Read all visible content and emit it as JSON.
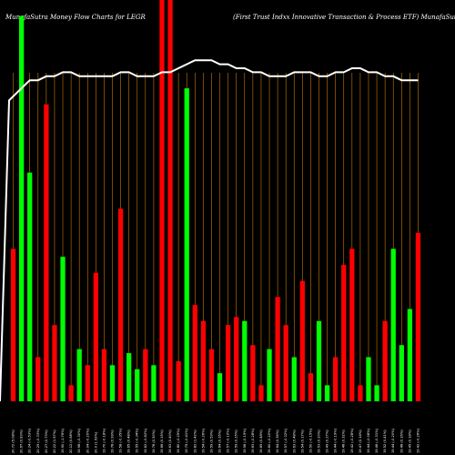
{
  "chart_data": {
    "type": "bar",
    "title": "MunafaSutra  Money Flow  Charts for LEGR",
    "subtitle": "(First Trust Indxx Innovative   Transaction  & Process ETF) MunafaSutra.com",
    "ylim": [
      0,
      100
    ],
    "grid": true,
    "colors": {
      "up": "#00ff00",
      "down": "#ff0000",
      "price_line": "#ffffff",
      "grid": "#cc7a00",
      "background": "#000000"
    },
    "categories": [
      "20.72 (5.08%)",
      "20.67 (0.83%)",
      "20.24 (-0.53%)",
      "20.29 (-0.33%)",
      "20.27 (0.73%)",
      "20.22 (1.57%)",
      "19.90 (-1.76%)",
      "20.12 (0.68%)",
      "19.98 (-0.30%)",
      "20.04 (-0.20%)",
      "20.0 (1.52%)",
      "19.70 (-0.18%)",
      "19.78 (0.99%)",
      "19.58 (-0.35%)",
      "19.65 (0.48%)",
      "19.55 (-0.34%)",
      "19.62 (-0.82%)",
      "19.78 (0.50%)",
      "19.66 (0.15%)",
      "19.63 (0.40%)",
      "19.80 (-0.25%)",
      "19.75 (-0.41%)",
      "19.82 (1.42%)",
      "19.54 (-0.26%)",
      "19.59 (0.59%)",
      "19.64 (0.35%)",
      "19.57 (-0.10%)",
      "19.59 (0.15%)",
      "19.56 (-0.19%)",
      "19.63 (-0.28%)",
      "19.69 (0.48%)",
      "19.60 (-0.20%)",
      "19.64 (0.36%)",
      "19.57 (-0.32%)",
      "19.63 (0.48%)",
      "19.54 (0.17%)",
      "19.50 (-0.15%)",
      "19.53 (0.20%)",
      "19.49 (0.27%)",
      "19.44 (-0.19%)",
      "19.48 (0.32%)",
      "19.42 (-0.28%)",
      "19.47 (0.14%)",
      "19.44 (-0.08%)",
      "19.46 (-0.31%)",
      "19.52 (0.41%)",
      "19.44 (-0.20%)",
      "19.48 (0.16%)",
      "19.45 (0.18%)",
      "19.42 (-0.26%)"
    ],
    "series": [
      {
        "values": [
          38,
          96,
          57,
          11,
          74,
          19,
          36,
          4,
          13,
          9,
          32,
          13,
          9,
          48,
          12,
          8,
          13,
          9,
          100,
          100,
          10,
          78,
          24,
          20,
          13,
          7,
          19,
          21,
          20,
          14,
          4,
          13,
          26,
          19,
          11,
          30,
          7,
          20,
          4,
          11,
          34,
          38,
          4,
          11,
          4,
          20,
          38,
          14,
          23,
          42
        ],
        "directions": [
          "down",
          "up",
          "up",
          "down",
          "down",
          "down",
          "up",
          "down",
          "up",
          "down",
          "down",
          "down",
          "up",
          "down",
          "up",
          "up",
          "down",
          "up",
          "down",
          "down",
          "down",
          "up",
          "down",
          "down",
          "down",
          "up",
          "down",
          "down",
          "up",
          "down",
          "down",
          "up",
          "down",
          "down",
          "up",
          "down",
          "down",
          "up",
          "up",
          "down",
          "down",
          "down",
          "down",
          "up",
          "up",
          "down",
          "up",
          "up",
          "up",
          "down"
        ]
      }
    ],
    "price_line": [
      75,
      78,
      80,
      80,
      81,
      81,
      82,
      82,
      81,
      81,
      81,
      81,
      81,
      82,
      82,
      81,
      81,
      81,
      82,
      82,
      83,
      84,
      85,
      85,
      85,
      84,
      84,
      83,
      83,
      82,
      82,
      81,
      81,
      81,
      82,
      82,
      82,
      81,
      81,
      82,
      82,
      83,
      83,
      82,
      82,
      81,
      81,
      80,
      80,
      80
    ]
  }
}
